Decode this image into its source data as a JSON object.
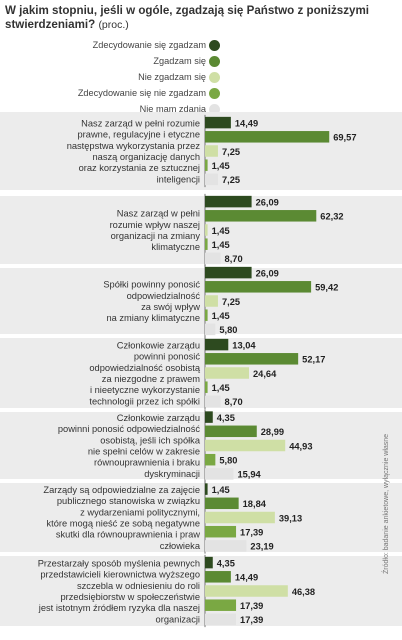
{
  "title": "W jakim stopniu, jeśli w ogóle, zgadzają się Państwo z poniższymi stwierdzeniami?",
  "unit_note": "(proc.)",
  "source": "Źródło: badanie ankietowe, wyłącznie własne",
  "colors": {
    "s1": "#2d4a1f",
    "s2": "#5b8a33",
    "s3": "#cfdfa5",
    "s4": "#7aa843",
    "s5": "#e3e3e3",
    "panel": "#ececec",
    "text": "#333333"
  },
  "chart_data": {
    "type": "bar",
    "orientation": "horizontal",
    "xlim": [
      0,
      70
    ],
    "legend_position": "top-right",
    "series": [
      {
        "name": "Zdecydowanie się zgadzam"
      },
      {
        "name": "Zgadzam się"
      },
      {
        "name": "Nie zgadzam się"
      },
      {
        "name": "Zdecydowanie się nie zgadzam"
      },
      {
        "name": "Nie mam zdania"
      }
    ],
    "groups": [
      {
        "lines": [
          "Nasz zarząd w pełni rozumie",
          "prawne, regulacyjne i etyczne",
          "następstwa wykorzystania przez",
          "naszą organizację danych",
          "oraz korzystania ze sztucznej",
          "inteligencji"
        ],
        "values": [
          14.49,
          69.57,
          7.25,
          1.45,
          7.25
        ],
        "labels": [
          "14,49",
          "69,57",
          "7,25",
          "1,45",
          "7,25"
        ]
      },
      {
        "lines": [
          "Nasz zarząd w pełni",
          "rozumie wpływ naszej",
          "organizacji na zmiany",
          "klimatyczne"
        ],
        "values": [
          26.09,
          62.32,
          1.45,
          1.45,
          8.7
        ],
        "labels": [
          "26,09",
          "62,32",
          "1,45",
          "1,45",
          "8,70"
        ]
      },
      {
        "lines": [
          "Spółki powinny ponosić",
          "odpowiedzialność",
          "za swój wpływ",
          "na zmiany klimatyczne"
        ],
        "values": [
          26.09,
          59.42,
          7.25,
          1.45,
          5.8
        ],
        "labels": [
          "26,09",
          "59,42",
          "7,25",
          "1,45",
          "5,80"
        ]
      },
      {
        "lines": [
          "Członkowie zarządu",
          "powinni ponosić",
          "odpowiedzialność osobistą",
          "za niezgodne z prawem",
          "i nieetyczne wykorzystanie",
          "technologii przez ich spółki"
        ],
        "values": [
          13.04,
          52.17,
          24.64,
          1.45,
          8.7
        ],
        "labels": [
          "13,04",
          "52,17",
          "24,64",
          "1,45",
          "8,70"
        ]
      },
      {
        "lines": [
          "Członkowie zarządu",
          "powinni ponosić odpowiedzialność",
          "osobistą, jeśli ich spółka",
          "nie spełni celów w zakresie",
          "równouprawnienia i braku",
          "dyskryminacji"
        ],
        "values": [
          4.35,
          28.99,
          44.93,
          5.8,
          15.94
        ],
        "labels": [
          "4,35",
          "28,99",
          "44,93",
          "5,80",
          "15,94"
        ]
      },
      {
        "lines": [
          "Zarządy są odpowiedzialne za zajęcie",
          "publicznego stanowiska w związku",
          "z wydarzeniami politycznymi,",
          "które mogą nieść ze sobą negatywne",
          "skutki dla równouprawnienia i praw",
          "człowieka"
        ],
        "values": [
          1.45,
          18.84,
          39.13,
          17.39,
          23.19
        ],
        "labels": [
          "1,45",
          "18,84",
          "39,13",
          "17,39",
          "23,19"
        ]
      },
      {
        "lines": [
          "Przestarzały sposób myślenia pewnych",
          "przedstawicieli kierownictwa wyższego",
          "szczebla w odniesieniu do roli",
          "przedsiębiorstw w społeczeństwie",
          "jest istotnym źródłem ryzyka dla naszej",
          "organizacji"
        ],
        "values": [
          4.35,
          14.49,
          46.38,
          17.39,
          17.39
        ],
        "labels": [
          "4,35",
          "14,49",
          "46,38",
          "17,39",
          "17,39"
        ]
      }
    ]
  }
}
